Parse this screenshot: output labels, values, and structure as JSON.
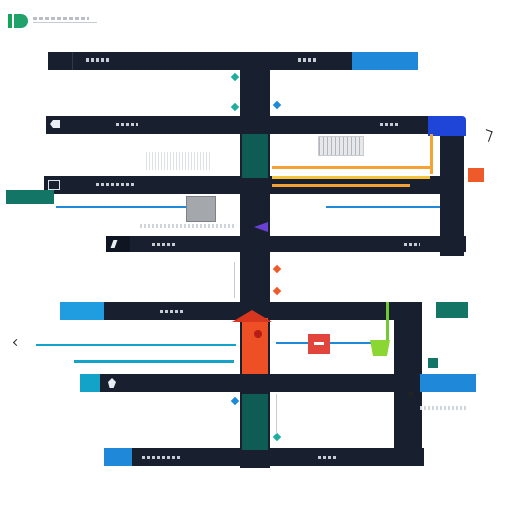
{
  "header": {
    "logo_text": "D"
  },
  "colors": {
    "dark": "#18202f",
    "blue": "#1f88d9",
    "cyan": "#13a3c9",
    "teal": "#127565",
    "red": "#ef5a2b",
    "orange": "#f3a233",
    "green": "#6fca33",
    "purple": "#6b41d4"
  },
  "icons": {
    "app_logo": "app-logo-icon",
    "chevron_left": "chevron-left-icon",
    "close": "close-icon",
    "down_arrow": "arrow-down-icon",
    "triangle": "triangle-icon"
  }
}
